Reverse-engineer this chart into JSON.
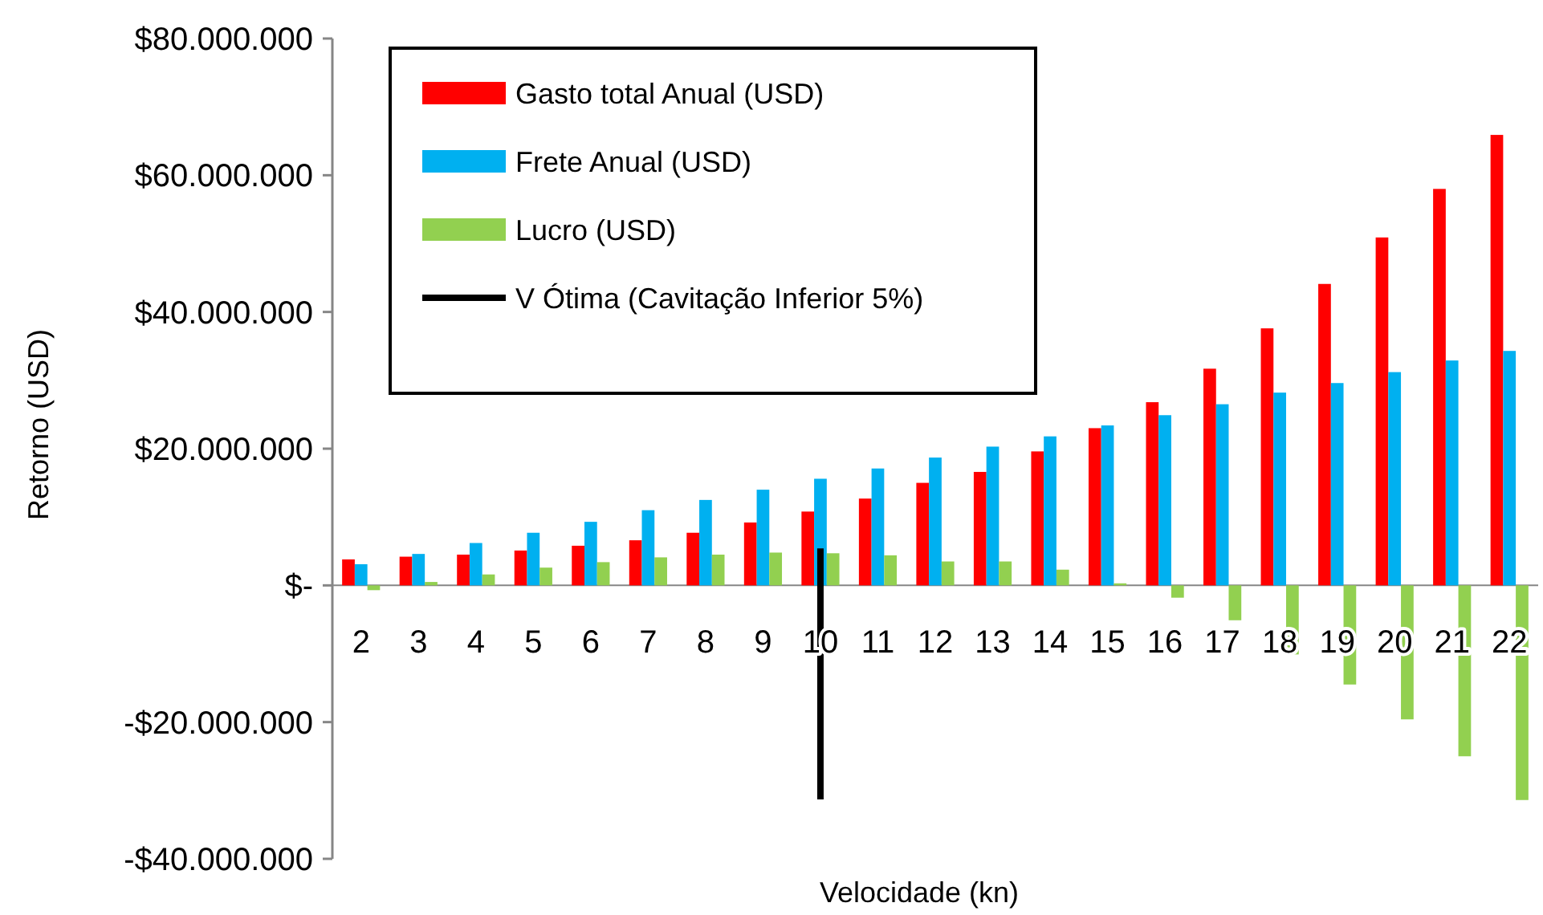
{
  "chart_data": {
    "type": "bar",
    "xlabel": "Velocidade (kn)",
    "ylabel": "Retorno (USD)",
    "categories": [
      "2",
      "3",
      "4",
      "5",
      "6",
      "7",
      "8",
      "9",
      "10",
      "11",
      "12",
      "13",
      "14",
      "15",
      "16",
      "17",
      "18",
      "19",
      "20",
      "21",
      "22"
    ],
    "series": [
      {
        "name": "Gasto total Anual (USD)",
        "color": "#ff0000",
        "values": [
          3800000.0,
          4200000.0,
          4500000.0,
          5100000.0,
          5800000.0,
          6600000.0,
          7700000.0,
          9200000.0,
          10800000.0,
          12700000.0,
          15000000.0,
          16600000.0,
          19600000.0,
          23000000.0,
          26800000.0,
          31700000.0,
          37600000.0,
          44100000.0,
          50900000.0,
          58000000.0,
          65900000.0
        ]
      },
      {
        "name": "Frete Anual (USD)",
        "color": "#00b0f0",
        "values": [
          3100000.0,
          4600000.0,
          6200000.0,
          7700000.0,
          9300000.0,
          11000000.0,
          12500000.0,
          14000000.0,
          15600000.0,
          17100000.0,
          18700000.0,
          20300000.0,
          21800000.0,
          23400000.0,
          24900000.0,
          26500000.0,
          28200000.0,
          29600000.0,
          31200000.0,
          32900000.0,
          34300000.0
        ]
      },
      {
        "name": "Lucro (USD)",
        "color": "#92d050",
        "values": [
          -700000.0,
          500000.0,
          1600000.0,
          2600000.0,
          3400000.0,
          4100000.0,
          4500000.0,
          4800000.0,
          4700000.0,
          4400000.0,
          3500000.0,
          3500000.0,
          2300000.0,
          300000.0,
          -1800000.0,
          -5100000.0,
          -10100000.0,
          -14500000.0,
          -19600000.0,
          -25000000.0,
          -31400000.0
        ]
      },
      {
        "name": "V Ótima (Cavitação Inferior 5%)",
        "type": "line",
        "color": "#000000",
        "x": [
          "10",
          "10"
        ],
        "values": [
          5400000.0,
          -31300000.0
        ]
      }
    ],
    "ylim": [
      -40000000,
      80000000
    ],
    "yticks": [
      {
        "value": -40000000,
        "label": "-$40.000.000"
      },
      {
        "value": -20000000,
        "label": "-$20.000.000"
      },
      {
        "value": 0,
        "label": "$-"
      },
      {
        "value": 20000000,
        "label": "$20.000.000"
      },
      {
        "value": 40000000,
        "label": "$40.000.000"
      },
      {
        "value": 60000000,
        "label": "$60.000.000"
      },
      {
        "value": 80000000,
        "label": "$80.000.000"
      }
    ],
    "grid": false,
    "legend": "top left"
  }
}
